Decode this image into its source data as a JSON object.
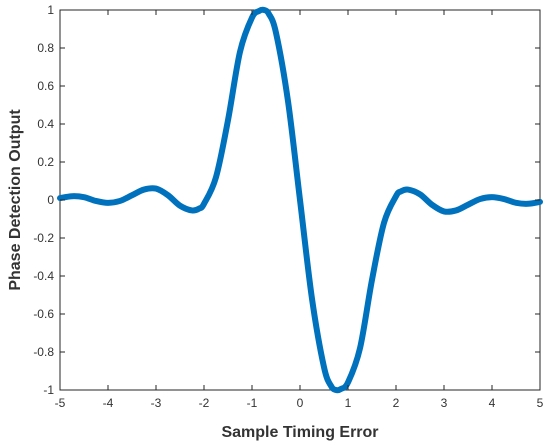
{
  "chart_data": {
    "type": "line",
    "title": "",
    "xlabel": "Sample Timing Error",
    "ylabel": "Phase Detection Output",
    "xlim": [
      -5,
      5
    ],
    "ylim": [
      -1,
      1
    ],
    "x_ticks": [
      -5,
      -4,
      -3,
      -2,
      -1,
      0,
      1,
      2,
      3,
      4,
      5
    ],
    "x_tick_labels": [
      "-5",
      "-4",
      "-3",
      "-2",
      "-1",
      "0",
      "1",
      "2",
      "3",
      "4",
      "5"
    ],
    "y_ticks": [
      -1,
      -0.8,
      -0.6,
      -0.4,
      -0.2,
      0,
      0.2,
      0.4,
      0.6,
      0.8,
      1
    ],
    "y_tick_labels": [
      "-1",
      "-0.8",
      "-0.6",
      "-0.4",
      "-0.2",
      "0",
      "0.2",
      "0.4",
      "0.6",
      "0.8",
      "1"
    ],
    "grid": false,
    "legend": "none",
    "series": [
      {
        "color": "#0072BD",
        "x": [
          -5,
          -4.75,
          -4.5,
          -4.25,
          -4,
          -3.75,
          -3.5,
          -3.25,
          -3,
          -2.75,
          -2.5,
          -2.25,
          -2.1,
          -2,
          -1.75,
          -1.5,
          -1.25,
          -1,
          -0.85,
          -0.75,
          -0.65,
          -0.5,
          -0.25,
          0,
          0.25,
          0.5,
          0.65,
          0.75,
          0.85,
          1,
          1.25,
          1.5,
          1.75,
          2,
          2.1,
          2.25,
          2.5,
          2.75,
          3,
          3.25,
          3.5,
          3.75,
          4,
          4.25,
          4.5,
          4.75,
          5
        ],
        "y": [
          0.01,
          0.02,
          0.015,
          -0.005,
          -0.015,
          -0.005,
          0.025,
          0.055,
          0.06,
          0.025,
          -0.03,
          -0.055,
          -0.045,
          -0.02,
          0.12,
          0.42,
          0.78,
          0.96,
          0.995,
          1.0,
          0.98,
          0.88,
          0.52,
          0.0,
          -0.52,
          -0.88,
          -0.98,
          -1.0,
          -0.995,
          -0.96,
          -0.78,
          -0.42,
          -0.12,
          0.02,
          0.045,
          0.055,
          0.03,
          -0.025,
          -0.06,
          -0.055,
          -0.025,
          0.005,
          0.015,
          0.005,
          -0.015,
          -0.02,
          -0.01
        ]
      }
    ]
  }
}
